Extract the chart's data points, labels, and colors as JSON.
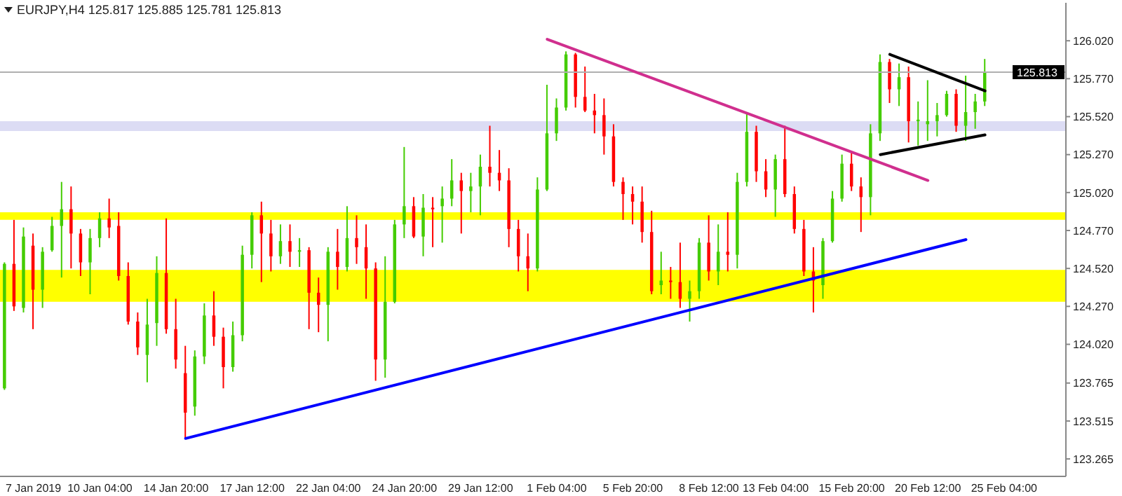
{
  "chart_data": {
    "type": "candlestick",
    "title": "EURJPY,H4  125.817 125.885 125.781 125.813",
    "categories": [
      null,
      null,
      null,
      "7 Jan 2019",
      null,
      null,
      null,
      null,
      null,
      null,
      "10 Jan 04:00",
      null,
      null,
      null,
      null,
      null,
      null,
      null,
      "14 Jan 20:00",
      null,
      null,
      null,
      null,
      null,
      null,
      null,
      "17 Jan 12:00",
      null,
      null,
      null,
      null,
      null,
      null,
      null,
      "22 Jan 04:00",
      null,
      null,
      null,
      null,
      null,
      null,
      null,
      "24 Jan 20:00",
      null,
      null,
      null,
      null,
      null,
      null,
      null,
      "29 Jan 12:00",
      null,
      null,
      null,
      null,
      null,
      null,
      null,
      "1 Feb 04:00",
      null,
      null,
      null,
      null,
      null,
      null,
      null,
      "5 Feb 20:00",
      null,
      null,
      null,
      null,
      null,
      null,
      null,
      "8 Feb 12:00",
      null,
      null,
      null,
      null,
      null,
      null,
      "13 Feb 04:00",
      null,
      null,
      null,
      null,
      null,
      null,
      null,
      "15 Feb 20:00",
      null,
      null,
      null,
      null,
      null,
      null,
      null,
      "20 Feb 12:00",
      null,
      null,
      null,
      null,
      null,
      null,
      null,
      "25 Feb 04:00",
      null,
      null,
      null,
      null,
      null,
      null
    ],
    "ohlc": [
      [
        123.73,
        124.56,
        123.72,
        124.55
      ],
      [
        124.55,
        124.84,
        124.24,
        124.27
      ],
      [
        124.26,
        124.79,
        124.23,
        124.73
      ],
      [
        124.67,
        124.75,
        124.12,
        124.38
      ],
      [
        124.38,
        124.66,
        124.26,
        124.63
      ],
      [
        124.64,
        124.86,
        124.63,
        124.8
      ],
      [
        124.8,
        125.09,
        124.46,
        124.91
      ],
      [
        124.91,
        125.06,
        124.52,
        124.75
      ],
      [
        124.75,
        124.78,
        124.47,
        124.56
      ],
      [
        124.56,
        124.78,
        124.35,
        124.72
      ],
      [
        124.72,
        124.89,
        124.66,
        124.85
      ],
      [
        124.85,
        124.98,
        124.72,
        124.79
      ],
      [
        124.8,
        124.89,
        124.44,
        124.47
      ],
      [
        124.47,
        124.56,
        124.15,
        124.17
      ],
      [
        124.17,
        124.23,
        123.95,
        124.0
      ],
      [
        123.95,
        124.32,
        123.77,
        124.15
      ],
      [
        124.16,
        124.6,
        124.01,
        124.49
      ],
      [
        124.49,
        124.85,
        124.09,
        124.12
      ],
      [
        124.12,
        124.32,
        123.86,
        123.92
      ],
      [
        123.83,
        124.01,
        123.4,
        123.57
      ],
      [
        123.61,
        123.98,
        123.55,
        123.94
      ],
      [
        123.94,
        124.29,
        123.89,
        124.21
      ],
      [
        124.21,
        124.37,
        124.01,
        124.07
      ],
      [
        124.07,
        124.13,
        123.73,
        123.87
      ],
      [
        123.87,
        124.17,
        123.84,
        124.08
      ],
      [
        124.08,
        124.67,
        124.04,
        124.61
      ],
      [
        124.61,
        124.89,
        124.52,
        124.87
      ],
      [
        124.87,
        124.96,
        124.43,
        124.75
      ],
      [
        124.75,
        124.84,
        124.5,
        124.6
      ],
      [
        124.6,
        124.81,
        124.55,
        124.7
      ],
      [
        124.7,
        124.81,
        124.53,
        124.63
      ],
      [
        124.63,
        124.72,
        124.53,
        124.64
      ],
      [
        124.64,
        124.66,
        124.12,
        124.36
      ],
      [
        124.36,
        124.46,
        124.1,
        124.28
      ],
      [
        124.28,
        124.66,
        124.04,
        124.63
      ],
      [
        124.63,
        124.78,
        124.38,
        124.53
      ],
      [
        124.53,
        124.93,
        124.5,
        124.72
      ],
      [
        124.72,
        124.87,
        124.55,
        124.66
      ],
      [
        124.66,
        124.81,
        124.32,
        124.52
      ],
      [
        124.52,
        124.56,
        123.78,
        123.92
      ],
      [
        123.92,
        124.6,
        123.8,
        124.3
      ],
      [
        124.3,
        124.84,
        124.29,
        124.81
      ],
      [
        124.81,
        125.32,
        124.72,
        124.93
      ],
      [
        124.93,
        124.99,
        124.72,
        124.73
      ],
      [
        124.73,
        125.01,
        124.6,
        124.92
      ],
      [
        124.92,
        124.99,
        124.66,
        124.91
      ],
      [
        124.93,
        125.06,
        124.69,
        124.98
      ],
      [
        124.98,
        125.24,
        124.93,
        125.1
      ],
      [
        125.1,
        125.15,
        124.75,
        125.03
      ],
      [
        125.03,
        125.15,
        124.89,
        125.06
      ],
      [
        125.06,
        125.27,
        124.87,
        125.19
      ],
      [
        125.19,
        125.46,
        125.06,
        125.15
      ],
      [
        125.15,
        125.3,
        125.03,
        125.1
      ],
      [
        125.1,
        125.18,
        124.66,
        124.78
      ],
      [
        124.78,
        124.84,
        124.5,
        124.6
      ],
      [
        124.6,
        124.75,
        124.37,
        124.52
      ],
      [
        124.52,
        125.12,
        124.5,
        125.04
      ],
      [
        125.04,
        125.73,
        125.03,
        125.41
      ],
      [
        125.41,
        125.64,
        125.36,
        125.58
      ],
      [
        125.58,
        125.95,
        125.56,
        125.93
      ],
      [
        125.93,
        125.94,
        125.58,
        125.65
      ],
      [
        125.65,
        125.85,
        125.55,
        125.56
      ],
      [
        125.56,
        125.67,
        125.41,
        125.53
      ],
      [
        125.53,
        125.64,
        125.27,
        125.39
      ],
      [
        125.39,
        125.47,
        125.06,
        125.09
      ],
      [
        125.09,
        125.12,
        124.84,
        125.01
      ],
      [
        125.01,
        125.06,
        124.81,
        124.96
      ],
      [
        124.96,
        125.06,
        124.69,
        124.76
      ],
      [
        124.76,
        124.9,
        124.35,
        124.37
      ],
      [
        124.41,
        124.63,
        124.35,
        124.44
      ],
      [
        124.44,
        124.53,
        124.32,
        124.43
      ],
      [
        124.43,
        124.69,
        124.26,
        124.32
      ],
      [
        124.32,
        124.44,
        124.17,
        124.37
      ],
      [
        124.37,
        124.72,
        124.32,
        124.69
      ],
      [
        124.69,
        124.87,
        124.44,
        124.5
      ],
      [
        124.5,
        124.81,
        124.41,
        124.63
      ],
      [
        124.63,
        124.89,
        124.5,
        124.61
      ],
      [
        124.61,
        125.15,
        124.52,
        125.09
      ],
      [
        125.09,
        125.55,
        125.06,
        125.42
      ],
      [
        125.42,
        125.46,
        125.09,
        125.16
      ],
      [
        125.16,
        125.24,
        124.99,
        125.04
      ],
      [
        125.04,
        125.27,
        124.86,
        125.24
      ],
      [
        125.24,
        125.46,
        124.99,
        125.01
      ],
      [
        125.01,
        125.06,
        124.75,
        124.78
      ],
      [
        124.78,
        124.84,
        124.47,
        124.5
      ],
      [
        124.5,
        124.66,
        124.23,
        124.44
      ],
      [
        124.41,
        124.72,
        124.32,
        124.7
      ],
      [
        124.7,
        125.03,
        124.69,
        124.98
      ],
      [
        124.98,
        125.27,
        124.96,
        125.21
      ],
      [
        125.21,
        125.29,
        125.03,
        125.06
      ],
      [
        125.06,
        125.12,
        124.76,
        124.99
      ],
      [
        124.99,
        125.47,
        124.87,
        125.41
      ],
      [
        125.41,
        125.93,
        125.36,
        125.88
      ],
      [
        125.88,
        125.9,
        125.61,
        125.7
      ],
      [
        125.7,
        125.87,
        125.59,
        125.78
      ],
      [
        125.78,
        125.85,
        125.35,
        125.49
      ],
      [
        125.49,
        125.62,
        125.33,
        125.5
      ],
      [
        125.47,
        125.76,
        125.36,
        125.49
      ],
      [
        125.49,
        125.61,
        125.39,
        125.53
      ],
      [
        125.53,
        125.69,
        125.52,
        125.67
      ],
      [
        125.67,
        125.7,
        125.42,
        125.46
      ],
      [
        125.46,
        125.79,
        125.36,
        125.55
      ],
      [
        125.55,
        125.67,
        125.44,
        125.62
      ],
      [
        125.62,
        125.9,
        125.59,
        125.81
      ],
      null,
      null,
      null,
      null,
      null,
      null,
      null,
      null
    ],
    "colors": [
      "#44cc00",
      "#ff0000",
      "#44cc00",
      "#ff0000",
      "#44cc00",
      "#44cc00",
      "#44cc00",
      "#ff0000",
      "#ff0000",
      "#44cc00",
      "#44cc00",
      "#ff0000",
      "#ff0000",
      "#ff0000",
      "#ff0000",
      "#44cc00",
      "#44cc00",
      "#ff0000",
      "#ff0000",
      "#ff0000",
      "#44cc00",
      "#44cc00",
      "#ff0000",
      "#ff0000",
      "#44cc00",
      "#44cc00",
      "#44cc00",
      "#ff0000",
      "#ff0000",
      "#44cc00",
      "#ff0000",
      "#44cc00",
      "#ff0000",
      "#ff0000",
      "#44cc00",
      "#ff0000",
      "#44cc00",
      "#ff0000",
      "#ff0000",
      "#ff0000",
      "#44cc00",
      "#44cc00",
      "#44cc00",
      "#ff0000",
      "#44cc00",
      "#ff0000",
      "#44cc00",
      "#44cc00",
      "#ff0000",
      "#44cc00",
      "#44cc00",
      "#ff0000",
      "#ff0000",
      "#ff0000",
      "#ff0000",
      "#ff0000",
      "#44cc00",
      "#44cc00",
      "#44cc00",
      "#44cc00",
      "#ff0000",
      "#ff0000",
      "#ff0000",
      "#ff0000",
      "#ff0000",
      "#ff0000",
      "#ff0000",
      "#ff0000",
      "#ff0000",
      "#44cc00",
      "#ff0000",
      "#ff0000",
      "#44cc00",
      "#44cc00",
      "#ff0000",
      "#44cc00",
      "#ff0000",
      "#44cc00",
      "#44cc00",
      "#ff0000",
      "#ff0000",
      "#44cc00",
      "#ff0000",
      "#ff0000",
      "#ff0000",
      "#ff0000",
      "#44cc00",
      "#44cc00",
      "#44cc00",
      "#ff0000",
      "#ff0000",
      "#44cc00",
      "#44cc00",
      "#ff0000",
      "#44cc00",
      "#ff0000",
      "#44cc00",
      "#44cc00",
      "#44cc00",
      "#44cc00",
      "#ff0000",
      "#44cc00",
      "#44cc00",
      "#44cc00",
      null,
      null,
      null,
      null,
      null,
      null,
      null,
      null
    ],
    "series": [
      {
        "type": "line",
        "color": "#0000ff",
        "values": [
          null,
          null,
          null,
          null,
          null,
          null,
          null,
          null,
          null,
          null,
          null,
          null,
          null,
          null,
          null,
          null,
          null,
          null,
          null,
          123.4,
          null,
          null,
          null,
          null,
          null,
          null,
          null,
          null,
          null,
          null,
          null,
          null,
          null,
          null,
          null,
          null,
          null,
          null,
          null,
          null,
          null,
          null,
          null,
          null,
          null,
          null,
          null,
          null,
          null,
          null,
          null,
          null,
          null,
          null,
          null,
          null,
          null,
          null,
          null,
          null,
          null,
          null,
          null,
          null,
          null,
          null,
          null,
          null,
          null,
          null,
          null,
          null,
          null,
          null,
          null,
          null,
          null,
          null,
          null,
          null,
          null,
          null,
          null,
          null,
          null,
          null,
          null,
          null,
          null,
          null,
          null,
          null,
          null,
          null,
          null,
          null,
          null,
          null,
          null,
          null,
          null,
          124.71,
          null,
          null,
          null,
          null,
          null,
          null,
          null,
          null,
          null,
          null
        ]
      },
      {
        "type": "line",
        "color": "#d02f8e",
        "values": [
          null,
          null,
          null,
          null,
          null,
          null,
          null,
          null,
          null,
          null,
          null,
          null,
          null,
          null,
          null,
          null,
          null,
          null,
          null,
          null,
          null,
          null,
          null,
          null,
          null,
          null,
          null,
          null,
          null,
          null,
          null,
          null,
          null,
          null,
          null,
          null,
          null,
          null,
          null,
          null,
          null,
          null,
          null,
          null,
          null,
          null,
          null,
          null,
          null,
          null,
          null,
          null,
          null,
          null,
          null,
          null,
          null,
          126.03,
          null,
          null,
          null,
          null,
          null,
          null,
          null,
          null,
          null,
          null,
          null,
          null,
          null,
          null,
          null,
          null,
          null,
          null,
          null,
          null,
          null,
          null,
          null,
          null,
          null,
          null,
          null,
          null,
          null,
          null,
          null,
          null,
          null,
          null,
          null,
          null,
          null,
          null,
          null,
          125.1,
          null,
          null,
          null,
          null,
          null,
          null,
          null,
          null,
          null,
          null,
          null,
          null,
          null,
          null
        ]
      },
      {
        "type": "line",
        "color": "#000000",
        "values": [
          null,
          null,
          null,
          null,
          null,
          null,
          null,
          null,
          null,
          null,
          null,
          null,
          null,
          null,
          null,
          null,
          null,
          null,
          null,
          null,
          null,
          null,
          null,
          null,
          null,
          null,
          null,
          null,
          null,
          null,
          null,
          null,
          null,
          null,
          null,
          null,
          null,
          null,
          null,
          null,
          null,
          null,
          null,
          null,
          null,
          null,
          null,
          null,
          null,
          null,
          null,
          null,
          null,
          null,
          null,
          null,
          null,
          null,
          null,
          null,
          null,
          null,
          null,
          null,
          null,
          null,
          null,
          null,
          null,
          null,
          null,
          null,
          null,
          null,
          null,
          null,
          null,
          null,
          null,
          null,
          null,
          null,
          null,
          null,
          null,
          null,
          null,
          null,
          null,
          null,
          null,
          null,
          null,
          125.93,
          null,
          null,
          null,
          null,
          null,
          null,
          null,
          null,
          null,
          125.69,
          null,
          null,
          null,
          null,
          null,
          null,
          null,
          null
        ]
      },
      {
        "type": "line",
        "color": "#000000",
        "values": [
          null,
          null,
          null,
          null,
          null,
          null,
          null,
          null,
          null,
          null,
          null,
          null,
          null,
          null,
          null,
          null,
          null,
          null,
          null,
          null,
          null,
          null,
          null,
          null,
          null,
          null,
          null,
          null,
          null,
          null,
          null,
          null,
          null,
          null,
          null,
          null,
          null,
          null,
          null,
          null,
          null,
          null,
          null,
          null,
          null,
          null,
          null,
          null,
          null,
          null,
          null,
          null,
          null,
          null,
          null,
          null,
          null,
          null,
          null,
          null,
          null,
          null,
          null,
          null,
          null,
          null,
          null,
          null,
          null,
          null,
          null,
          null,
          null,
          null,
          null,
          null,
          null,
          null,
          null,
          null,
          null,
          null,
          null,
          null,
          null,
          null,
          null,
          null,
          null,
          null,
          null,
          null,
          125.27,
          null,
          null,
          null,
          null,
          null,
          null,
          null,
          null,
          null,
          null,
          125.4,
          null,
          null,
          null,
          null,
          null,
          null,
          null,
          null
        ]
      }
    ],
    "ylim": [
      123.15,
      126.27
    ],
    "yticks": [
      {
        "value": 123.265,
        "label": "123.265"
      },
      {
        "value": 123.515,
        "label": "123.515"
      },
      {
        "value": 123.765,
        "label": "123.765"
      },
      {
        "value": 124.02,
        "label": "124.020"
      },
      {
        "value": 124.27,
        "label": "124.270"
      },
      {
        "value": 124.52,
        "label": "124.520"
      },
      {
        "value": 124.77,
        "label": "124.770"
      },
      {
        "value": 125.02,
        "label": "125.020"
      },
      {
        "value": 125.27,
        "label": "125.270"
      },
      {
        "value": 125.52,
        "label": "125.520"
      },
      {
        "value": 125.77,
        "label": "125.770"
      },
      {
        "value": 126.02,
        "label": "126.020"
      }
    ],
    "bands": [
      {
        "axis": "y",
        "from": 124.3,
        "to": 124.51,
        "color": "#ffff00"
      },
      {
        "axis": "y",
        "from": 124.84,
        "to": 124.89,
        "color": "#ffff00"
      },
      {
        "axis": "y",
        "from": 125.425,
        "to": 125.49,
        "color": "#dcdcf4"
      }
    ],
    "ref_lines": [
      {
        "axis": "y",
        "value": 125.813,
        "label": "125.813",
        "color": "#b0b0b0"
      }
    ]
  }
}
